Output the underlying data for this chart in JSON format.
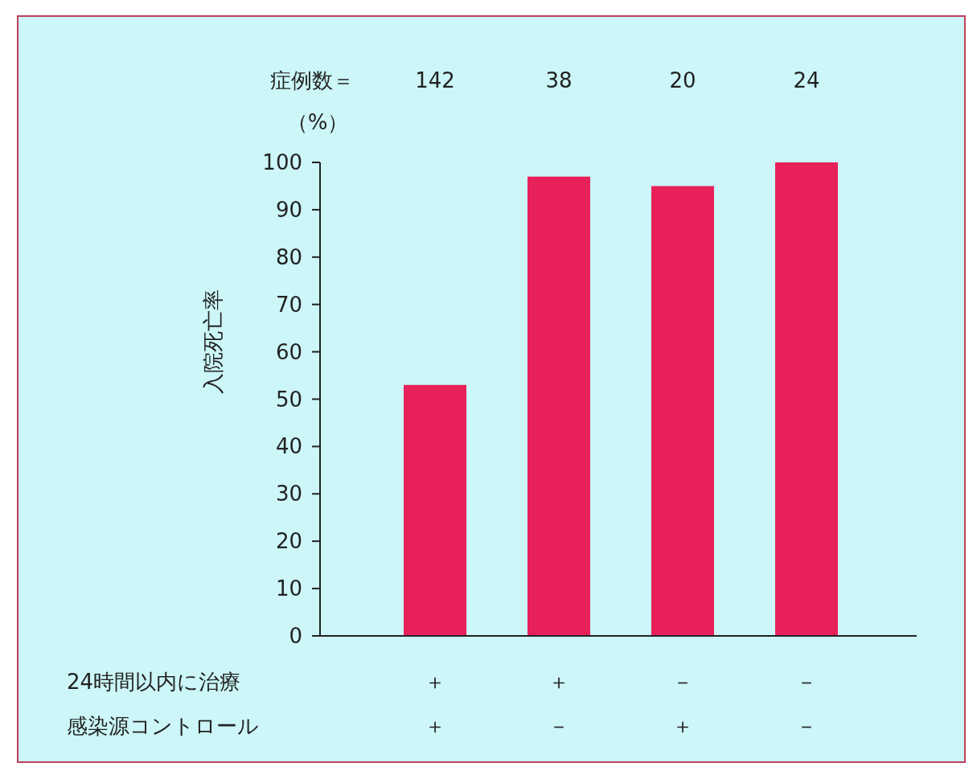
{
  "chart_data": {
    "type": "bar",
    "ylabel": "入院死亡率",
    "categories": [
      "＋＋",
      "＋－",
      "－＋",
      "－－"
    ],
    "values": [
      53,
      97,
      95,
      100
    ],
    "color": "#e8215a",
    "ylim": [
      0,
      100
    ],
    "yticks": [
      0,
      10,
      20,
      30,
      40,
      50,
      60,
      70,
      80,
      90,
      100
    ],
    "annotations": [
      "症例数＝",
      "142",
      "38",
      "20",
      "24",
      "（%）",
      "24時間以内に治療",
      "感染源コントロール"
    ]
  }
}
